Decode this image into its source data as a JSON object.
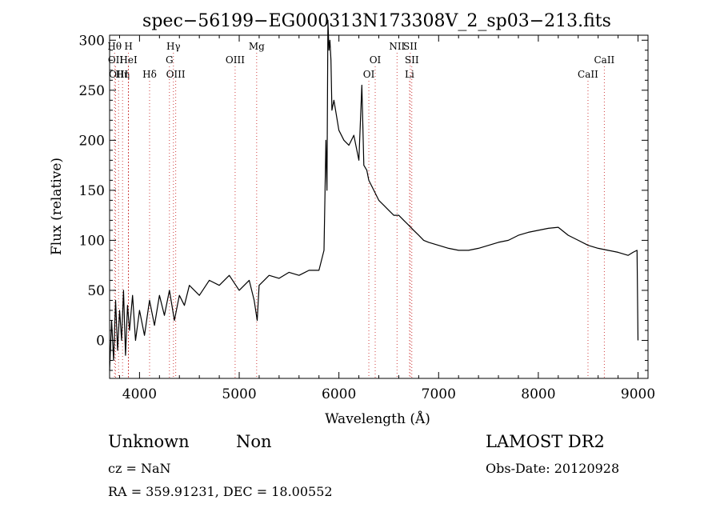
{
  "chart_data": {
    "type": "line",
    "title": "spec−56199−EG000313N173308V_2_sp03−213.fits",
    "xlabel": "Wavelength (Å)",
    "ylabel": "Flux (relative)",
    "xlim": [
      3700,
      9100
    ],
    "ylim": [
      -38,
      305
    ],
    "xticks": [
      4000,
      5000,
      6000,
      7000,
      8000,
      9000
    ],
    "yticks": [
      0,
      50,
      100,
      150,
      200,
      250,
      300
    ],
    "color": "#000000",
    "line_marker_color": "#d04040",
    "series": [
      {
        "x": [
          3700,
          3720,
          3740,
          3760,
          3780,
          3800,
          3820,
          3840,
          3860,
          3880,
          3900,
          3930,
          3960,
          4000,
          4050,
          4100,
          4150,
          4200,
          4250,
          4300,
          4350,
          4400,
          4450,
          4500,
          4600,
          4700,
          4800,
          4900,
          5000,
          5100,
          5150,
          5180,
          5200,
          5250,
          5300,
          5400,
          5500,
          5600,
          5700,
          5800,
          5850,
          5870,
          5880,
          5890,
          5900,
          5910,
          5920,
          5930,
          5950,
          6000,
          6050,
          6100,
          6150,
          6200,
          6230,
          6250,
          6280,
          6300,
          6350,
          6400,
          6450,
          6500,
          6550,
          6600,
          6650,
          6700,
          6750,
          6800,
          6850,
          6900,
          7000,
          7100,
          7200,
          7300,
          7400,
          7500,
          7600,
          7700,
          7800,
          7900,
          8000,
          8100,
          8200,
          8300,
          8400,
          8500,
          8600,
          8700,
          8800,
          8900,
          8950,
          8990,
          9000
        ],
        "y": [
          -30,
          20,
          -20,
          40,
          -10,
          30,
          0,
          50,
          -15,
          35,
          10,
          45,
          0,
          30,
          5,
          40,
          15,
          45,
          25,
          50,
          20,
          45,
          35,
          55,
          45,
          60,
          55,
          65,
          50,
          60,
          40,
          20,
          55,
          60,
          65,
          62,
          68,
          65,
          70,
          70,
          90,
          200,
          150,
          320,
          290,
          300,
          280,
          230,
          240,
          210,
          200,
          195,
          205,
          180,
          255,
          175,
          170,
          160,
          150,
          140,
          135,
          130,
          125,
          125,
          120,
          115,
          110,
          105,
          100,
          98,
          95,
          92,
          90,
          90,
          92,
          95,
          98,
          100,
          105,
          108,
          110,
          112,
          113,
          105,
          100,
          95,
          92,
          90,
          88,
          85,
          88,
          90,
          0
        ]
      }
    ],
    "spectral_lines": [
      {
        "x": 3750,
        "label": "Hθ",
        "row": 0
      },
      {
        "x": 3760,
        "label": "OII",
        "row": 1
      },
      {
        "x": 3790,
        "label": "OIII",
        "row": 2
      },
      {
        "x": 3830,
        "label": "Hη",
        "row": 2
      },
      {
        "x": 3889,
        "label": "H",
        "row": 0
      },
      {
        "x": 3889,
        "label": "HeI",
        "row": 1
      },
      {
        "x": 4101,
        "label": "Hδ",
        "row": 2
      },
      {
        "x": 4340,
        "label": "Hγ",
        "row": 0
      },
      {
        "x": 4300,
        "label": "G",
        "row": 1
      },
      {
        "x": 4363,
        "label": "OIII",
        "row": 2
      },
      {
        "x": 4959,
        "label": "OIII",
        "row": 1
      },
      {
        "x": 5175,
        "label": "Mg",
        "row": 0
      },
      {
        "x": 6300,
        "label": "OI",
        "row": 2
      },
      {
        "x": 6364,
        "label": "OI",
        "row": 1
      },
      {
        "x": 6583,
        "label": "NII",
        "row": 0
      },
      {
        "x": 6716,
        "label": "SII",
        "row": 0
      },
      {
        "x": 6731,
        "label": "SII",
        "row": 1
      },
      {
        "x": 6708,
        "label": "Li",
        "row": 2
      },
      {
        "x": 8498,
        "label": "CaII",
        "row": 2
      },
      {
        "x": 8662,
        "label": "CaII",
        "row": 1
      }
    ]
  },
  "info": {
    "class": "Unknown",
    "subclass": "Non",
    "cz": "cz = NaN",
    "radec": "RA = 359.91231, DEC =  18.00552",
    "survey": "LAMOST DR2",
    "obsdate": "Obs-Date: 20120928"
  }
}
